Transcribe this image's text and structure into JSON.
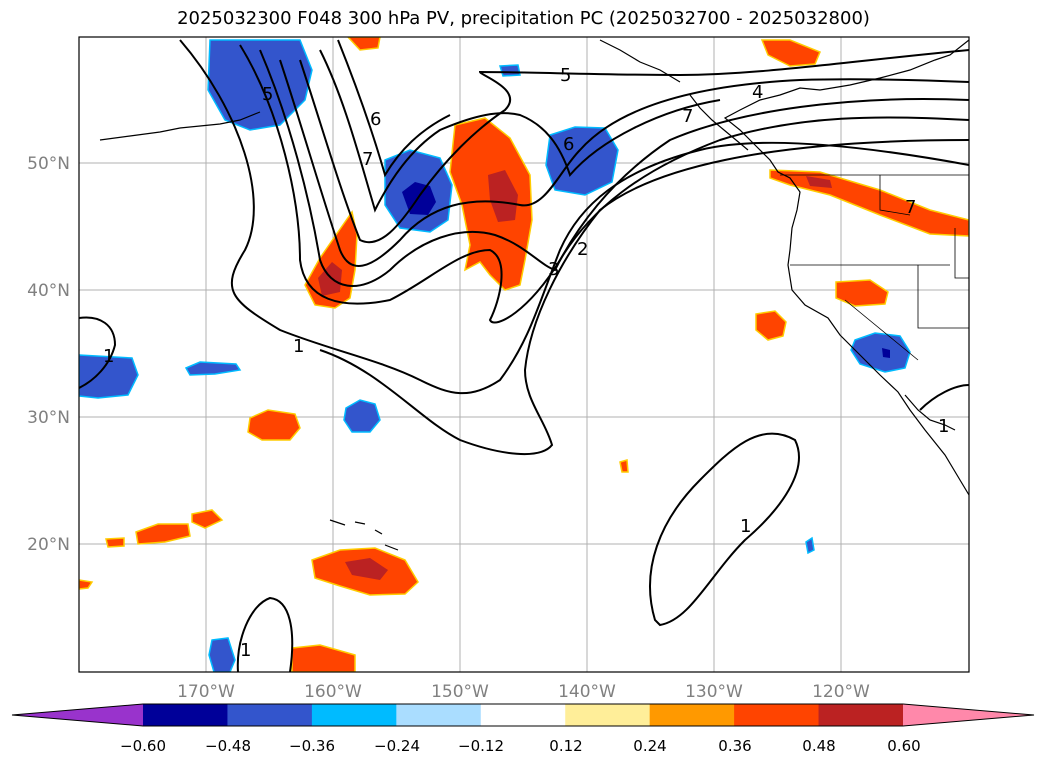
{
  "title": "2025032300 F048 300 hPa PV, precipitation PC (2025032700 - 2025032800)",
  "lat_labels": [
    "50°N",
    "40°N",
    "30°N",
    "20°N"
  ],
  "lon_labels": [
    "170°W",
    "160°W",
    "150°W",
    "140°W",
    "130°W",
    "120°W"
  ],
  "colorbar": {
    "colors": [
      "#9933cc",
      "#000099",
      "#3355cc",
      "#00bbff",
      "#aaddff",
      "#ffffff",
      "#ffee99",
      "#ff9900",
      "#ff4400",
      "#bb2222",
      "#ff88aa"
    ],
    "labels": [
      "−0.60",
      "−0.48",
      "−0.36",
      "−0.24",
      "−0.12",
      "0.12",
      "0.24",
      "0.36",
      "0.48",
      "0.60"
    ]
  },
  "contour_labels": [
    "5",
    "4",
    "6",
    "7",
    "5",
    "6",
    "2",
    "3",
    "1",
    "1",
    "1",
    "1",
    "1",
    "7",
    "7"
  ]
}
